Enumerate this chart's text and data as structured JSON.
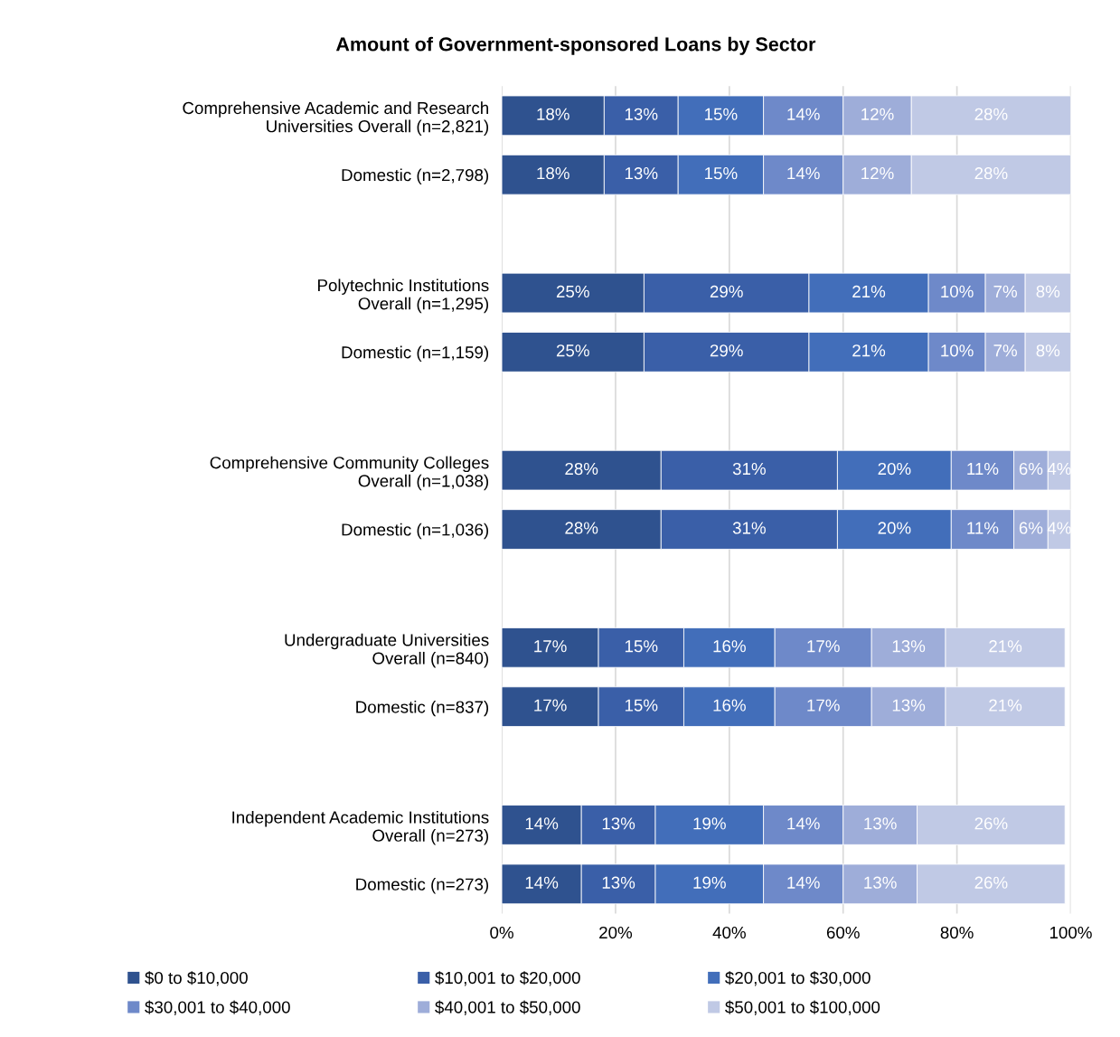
{
  "chart_data": {
    "type": "bar",
    "orientation": "horizontal",
    "stacked": true,
    "title": "Amount of Government-sponsored Loans by Sector",
    "categories": [
      "Comprehensive Academic and Research\nUniversities Overall (n=2,821)",
      "Domestic (n=2,798)",
      null,
      "Polytechnic Institutions\nOverall (n=1,295)",
      "Domestic (n=1,159)",
      null,
      "Comprehensive Community Colleges\nOverall (n=1,038)",
      "Domestic (n=1,036)",
      null,
      "Undergraduate Universities\nOverall (n=840)",
      "Domestic (n=837)",
      null,
      "Independent Academic Institutions\nOverall (n=273)",
      "Domestic (n=273)"
    ],
    "series": [
      {
        "name": "$0 to $10,000",
        "color": "#2f528f",
        "values": [
          18,
          18,
          null,
          25,
          25,
          null,
          28,
          28,
          null,
          17,
          17,
          null,
          14,
          14
        ],
        "value_labels": [
          "18%",
          "18%",
          null,
          "25%",
          "25%",
          null,
          "28%",
          "28%",
          null,
          "17%",
          "17%",
          null,
          "14%",
          "14%"
        ]
      },
      {
        "name": "$10,001 to $20,000",
        "color": "#3a5fa8",
        "values": [
          13,
          13,
          null,
          29,
          29,
          null,
          31,
          31,
          null,
          15,
          15,
          null,
          13,
          13
        ],
        "value_labels": [
          "13%",
          "13%",
          null,
          "29%",
          "29%",
          null,
          "31%",
          "31%",
          null,
          "15%",
          "15%",
          null,
          "13%",
          "13%"
        ]
      },
      {
        "name": "$20,001 to $30,000",
        "color": "#426eba",
        "values": [
          15,
          15,
          null,
          21,
          21,
          null,
          20,
          20,
          null,
          16,
          16,
          null,
          19,
          19
        ],
        "value_labels": [
          "15%",
          "15%",
          null,
          "21%",
          "21%",
          null,
          "20%",
          "20%",
          null,
          "16%",
          "16%",
          null,
          "19%",
          "19%"
        ]
      },
      {
        "name": "$30,001 to $40,000",
        "color": "#6e89c9",
        "values": [
          14,
          14,
          null,
          10,
          10,
          null,
          11,
          11,
          null,
          17,
          17,
          null,
          14,
          14
        ],
        "value_labels": [
          "14%",
          "14%",
          null,
          "10%",
          "10%",
          null,
          "11%",
          "11%",
          null,
          "17%",
          "17%",
          null,
          "14%",
          "14%"
        ]
      },
      {
        "name": "$40,001 to $50,000",
        "color": "#9eadd9",
        "values": [
          12,
          12,
          null,
          7,
          7,
          null,
          6,
          6,
          null,
          13,
          13,
          null,
          13,
          13
        ],
        "value_labels": [
          "12%",
          "12%",
          null,
          "7%",
          "7%",
          null,
          "6%",
          "6%",
          null,
          "13%",
          "13%",
          null,
          "13%",
          "13%"
        ]
      },
      {
        "name": "$50,001 to $100,000",
        "color": "#c0c9e5",
        "values": [
          28,
          28,
          null,
          8,
          8,
          null,
          4,
          4,
          null,
          21,
          21,
          null,
          26,
          26
        ],
        "value_labels": [
          "28%",
          "28%",
          null,
          "8%",
          "8%",
          null,
          "4%",
          "4%",
          null,
          "21%",
          "21%",
          null,
          "26%",
          "26%"
        ]
      }
    ],
    "xlim": [
      0,
      100
    ],
    "xticks": [
      {
        "value": 0,
        "label": "0%"
      },
      {
        "value": 20,
        "label": "20%"
      },
      {
        "value": 40,
        "label": "40%"
      },
      {
        "value": 60,
        "label": "60%"
      },
      {
        "value": 80,
        "label": "80%"
      },
      {
        "value": 100,
        "label": "100%"
      }
    ],
    "grid": "x",
    "legend": "bottom"
  }
}
